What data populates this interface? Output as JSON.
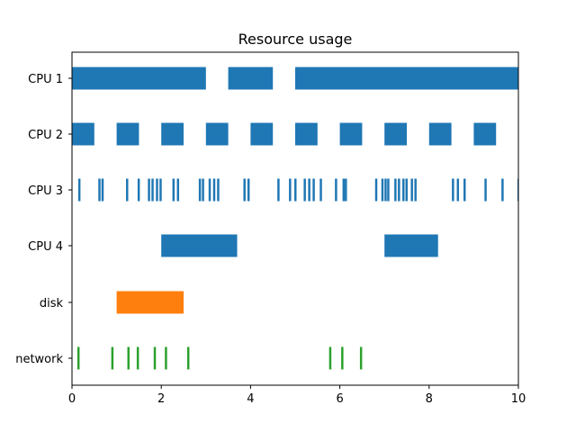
{
  "chart_data": {
    "type": "broken_barh",
    "title": "Resource usage",
    "xlabel": "",
    "ylabel": "",
    "xlim": [
      0,
      10
    ],
    "xticks": [
      0,
      2,
      4,
      6,
      8,
      10
    ],
    "grid": false,
    "series": [
      {
        "category": "CPU 1",
        "color": "#1f77b4",
        "intervals": [
          [
            0,
            3
          ],
          [
            3.5,
            1
          ],
          [
            5,
            5
          ]
        ]
      },
      {
        "category": "CPU 2",
        "color": "#1f77b4",
        "intervals": [
          [
            0,
            0.5
          ],
          [
            1,
            0.5
          ],
          [
            2,
            0.5
          ],
          [
            3,
            0.5
          ],
          [
            4,
            0.5
          ],
          [
            5,
            0.5
          ],
          [
            6,
            0.5
          ],
          [
            7,
            0.5
          ],
          [
            8,
            0.5
          ],
          [
            9,
            0.5
          ]
        ]
      },
      {
        "category": "CPU 3",
        "color": "#1f77b4",
        "intervals": [
          [
            0.14,
            0.05
          ],
          [
            0.59,
            0.05
          ],
          [
            0.66,
            0.05
          ],
          [
            1.21,
            0.05
          ],
          [
            1.47,
            0.05
          ],
          [
            1.7,
            0.05
          ],
          [
            1.78,
            0.05
          ],
          [
            1.88,
            0.05
          ],
          [
            1.96,
            0.05
          ],
          [
            2.25,
            0.05
          ],
          [
            2.35,
            0.05
          ],
          [
            2.84,
            0.05
          ],
          [
            2.91,
            0.05
          ],
          [
            3.06,
            0.05
          ],
          [
            3.16,
            0.05
          ],
          [
            3.25,
            0.05
          ],
          [
            3.84,
            0.05
          ],
          [
            3.93,
            0.05
          ],
          [
            4.6,
            0.05
          ],
          [
            4.86,
            0.05
          ],
          [
            4.98,
            0.05
          ],
          [
            5.19,
            0.05
          ],
          [
            5.29,
            0.05
          ],
          [
            5.39,
            0.05
          ],
          [
            5.55,
            0.05
          ],
          [
            5.89,
            0.05
          ],
          [
            6.06,
            0.05
          ],
          [
            6.11,
            0.05
          ],
          [
            6.79,
            0.05
          ],
          [
            6.93,
            0.05
          ],
          [
            7.0,
            0.05
          ],
          [
            7.06,
            0.05
          ],
          [
            7.22,
            0.05
          ],
          [
            7.3,
            0.05
          ],
          [
            7.4,
            0.05
          ],
          [
            7.47,
            0.05
          ],
          [
            7.59,
            0.05
          ],
          [
            7.67,
            0.05
          ],
          [
            8.51,
            0.05
          ],
          [
            8.62,
            0.05
          ],
          [
            8.77,
            0.05
          ],
          [
            9.24,
            0.05
          ],
          [
            9.62,
            0.05
          ],
          [
            9.98,
            0.05
          ]
        ]
      },
      {
        "category": "CPU 4",
        "color": "#1f77b4",
        "intervals": [
          [
            2,
            1.7
          ],
          [
            7,
            1.2
          ]
        ]
      },
      {
        "category": "disk",
        "color": "#ff7f0e",
        "intervals": [
          [
            1,
            1.5
          ]
        ]
      },
      {
        "category": "network",
        "color": "#2ca02c",
        "intervals": [
          [
            0.12,
            0.05
          ],
          [
            0.88,
            0.05
          ],
          [
            1.24,
            0.05
          ],
          [
            1.45,
            0.05
          ],
          [
            1.83,
            0.05
          ],
          [
            2.08,
            0.05
          ],
          [
            2.58,
            0.05
          ],
          [
            5.76,
            0.05
          ],
          [
            6.03,
            0.05
          ],
          [
            6.45,
            0.05
          ]
        ]
      }
    ]
  }
}
